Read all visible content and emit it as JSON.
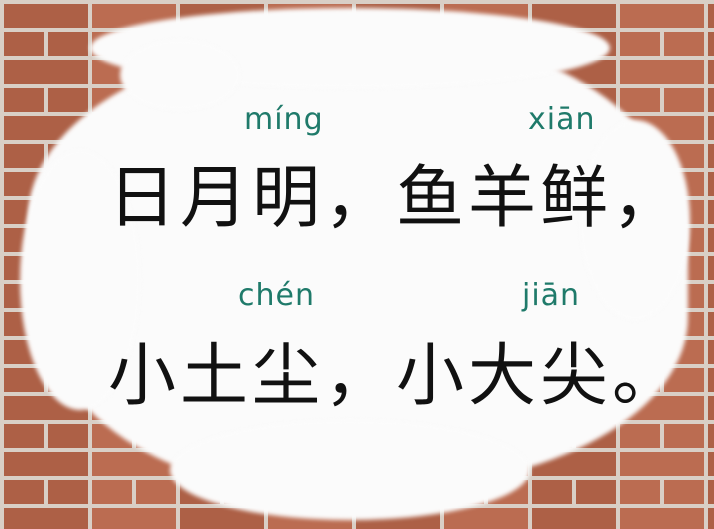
{
  "pinyin": {
    "ming": "míng",
    "xian": "xiān",
    "chen": "chén",
    "jian": "jiān"
  },
  "lines": {
    "line1": "日月明，鱼羊鲜，",
    "line2": "小土尘，小大尖。"
  },
  "colors": {
    "pinyin": "#1f7a6a",
    "brick": "#b8664a",
    "mortar": "#d9cfc6",
    "panel": "#fbfbfb"
  }
}
